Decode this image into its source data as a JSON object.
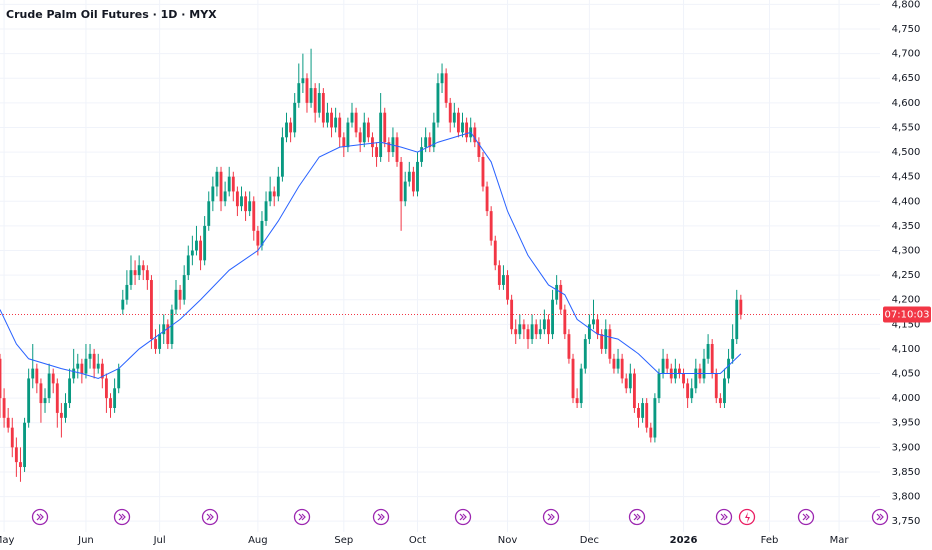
{
  "chart_data": {
    "type": "candlestick",
    "title": "Crude Palm Oil Futures · 1D · MYX",
    "up_color": "#089981",
    "down_color": "#f23645",
    "ylim": [
      3728,
      4809
    ],
    "yticks": [
      {
        "value": 3750,
        "label": "3,750"
      },
      {
        "value": 3800,
        "label": "3,800"
      },
      {
        "value": 3850,
        "label": "3,850"
      },
      {
        "value": 3900,
        "label": "3,900"
      },
      {
        "value": 3950,
        "label": "3,950"
      },
      {
        "value": 4000,
        "label": "4,000"
      },
      {
        "value": 4050,
        "label": "4,050"
      },
      {
        "value": 4100,
        "label": "4,100"
      },
      {
        "value": 4150,
        "label": "4,150"
      },
      {
        "value": 4200,
        "label": "4,200"
      },
      {
        "value": 4250,
        "label": "4,250"
      },
      {
        "value": 4300,
        "label": "4,300"
      },
      {
        "value": 4350,
        "label": "4,350"
      },
      {
        "value": 4400,
        "label": "4,400"
      },
      {
        "value": 4450,
        "label": "4,450"
      },
      {
        "value": 4500,
        "label": "4,500"
      },
      {
        "value": 4550,
        "label": "4,550"
      },
      {
        "value": 4600,
        "label": "4,600"
      },
      {
        "value": 4650,
        "label": "4,650"
      },
      {
        "value": 4700,
        "label": "4,700"
      },
      {
        "value": 4750,
        "label": "4,750"
      },
      {
        "value": 4800,
        "label": "4,800"
      }
    ],
    "xlim": [
      0,
      215
    ],
    "xticks": [
      {
        "value": 1,
        "label": "May"
      },
      {
        "value": 21,
        "label": "Jun"
      },
      {
        "value": 39,
        "label": "Jul"
      },
      {
        "value": 63,
        "label": "Aug"
      },
      {
        "value": 84,
        "label": "Sep"
      },
      {
        "value": 102,
        "label": "Oct"
      },
      {
        "value": 124,
        "label": "Nov"
      },
      {
        "value": 144,
        "label": "Dec"
      },
      {
        "value": 167,
        "label": "2026"
      },
      {
        "value": 188,
        "label": "Feb"
      },
      {
        "value": 205,
        "label": "Mar"
      }
    ],
    "grid": true,
    "ohlc": [
      [
        4080,
        4090,
        3960,
        4000
      ],
      [
        4000,
        4020,
        3940,
        3960
      ],
      [
        3960,
        3980,
        3930,
        3940
      ],
      [
        3940,
        3960,
        3880,
        3900
      ],
      [
        3900,
        3920,
        3840,
        3870
      ],
      [
        3870,
        3900,
        3830,
        3860
      ],
      [
        3860,
        3960,
        3850,
        3950
      ],
      [
        3950,
        4060,
        3940,
        4040
      ],
      [
        4040,
        4110,
        4020,
        4060
      ],
      [
        4060,
        4070,
        4010,
        4030
      ],
      [
        4030,
        4040,
        3950,
        3990
      ],
      [
        3990,
        4020,
        3970,
        4000
      ],
      [
        4000,
        4070,
        3990,
        4050
      ],
      [
        4050,
        4060,
        4010,
        4030
      ],
      [
        4030,
        4040,
        3940,
        3970
      ],
      [
        3970,
        3990,
        3920,
        3960
      ],
      [
        3960,
        4010,
        3950,
        3990
      ],
      [
        3990,
        4060,
        3980,
        4040
      ],
      [
        4040,
        4100,
        4030,
        4060
      ],
      [
        4060,
        4090,
        4040,
        4070
      ],
      [
        4070,
        4080,
        4030,
        4050
      ],
      [
        4050,
        4110,
        4040,
        4080
      ],
      [
        4080,
        4110,
        4060,
        4090
      ],
      [
        4090,
        4100,
        4040,
        4060
      ],
      [
        4060,
        4090,
        4050,
        4070
      ],
      [
        4070,
        4080,
        4020,
        4040
      ],
      [
        4040,
        4050,
        3970,
        4000
      ],
      [
        4000,
        4010,
        3960,
        3980
      ],
      [
        3980,
        4040,
        3970,
        4020
      ],
      [
        4020,
        4070,
        4010,
        4060
      ],
      [
        4180,
        4220,
        4170,
        4200
      ],
      [
        4200,
        4260,
        4190,
        4230
      ],
      [
        4230,
        4290,
        4220,
        4260
      ],
      [
        4260,
        4280,
        4230,
        4250
      ],
      [
        4250,
        4290,
        4240,
        4270
      ],
      [
        4270,
        4280,
        4240,
        4260
      ],
      [
        4260,
        4270,
        4220,
        4240
      ],
      [
        4240,
        4250,
        4100,
        4120
      ],
      [
        4120,
        4140,
        4090,
        4100
      ],
      [
        4100,
        4150,
        4090,
        4130
      ],
      [
        4130,
        4170,
        4110,
        4150
      ],
      [
        4150,
        4160,
        4100,
        4110
      ],
      [
        4110,
        4190,
        4100,
        4180
      ],
      [
        4180,
        4240,
        4170,
        4220
      ],
      [
        4220,
        4230,
        4180,
        4200
      ],
      [
        4200,
        4270,
        4190,
        4250
      ],
      [
        4250,
        4310,
        4240,
        4290
      ],
      [
        4290,
        4330,
        4270,
        4300
      ],
      [
        4300,
        4350,
        4290,
        4320
      ],
      [
        4320,
        4330,
        4260,
        4280
      ],
      [
        4280,
        4370,
        4270,
        4350
      ],
      [
        4350,
        4420,
        4340,
        4400
      ],
      [
        4400,
        4450,
        4380,
        4430
      ],
      [
        4430,
        4470,
        4410,
        4460
      ],
      [
        4460,
        4470,
        4380,
        4400
      ],
      [
        4400,
        4440,
        4390,
        4420
      ],
      [
        4420,
        4470,
        4410,
        4450
      ],
      [
        4450,
        4460,
        4400,
        4420
      ],
      [
        4420,
        4430,
        4370,
        4390
      ],
      [
        4390,
        4430,
        4380,
        4410
      ],
      [
        4410,
        4420,
        4360,
        4380
      ],
      [
        4380,
        4420,
        4370,
        4400
      ],
      [
        4400,
        4410,
        4320,
        4340
      ],
      [
        4340,
        4350,
        4290,
        4310
      ],
      [
        4310,
        4380,
        4300,
        4360
      ],
      [
        4360,
        4420,
        4350,
        4400
      ],
      [
        4400,
        4450,
        4390,
        4420
      ],
      [
        4420,
        4430,
        4390,
        4410
      ],
      [
        4410,
        4470,
        4400,
        4450
      ],
      [
        4450,
        4550,
        4440,
        4530
      ],
      [
        4530,
        4580,
        4520,
        4560
      ],
      [
        4560,
        4570,
        4520,
        4540
      ],
      [
        4540,
        4620,
        4530,
        4600
      ],
      [
        4600,
        4680,
        4590,
        4640
      ],
      [
        4640,
        4700,
        4620,
        4650
      ],
      [
        4650,
        4660,
        4580,
        4600
      ],
      [
        4600,
        4710,
        4590,
        4630
      ],
      [
        4630,
        4640,
        4560,
        4580
      ],
      [
        4580,
        4640,
        4570,
        4620
      ],
      [
        4620,
        4630,
        4550,
        4560
      ],
      [
        4560,
        4600,
        4550,
        4580
      ],
      [
        4580,
        4590,
        4530,
        4550
      ],
      [
        4550,
        4590,
        4540,
        4570
      ],
      [
        4570,
        4580,
        4510,
        4530
      ],
      [
        4530,
        4540,
        4490,
        4510
      ],
      [
        4510,
        4570,
        4500,
        4560
      ],
      [
        4560,
        4600,
        4550,
        4580
      ],
      [
        4580,
        4590,
        4530,
        4540
      ],
      [
        4540,
        4550,
        4500,
        4520
      ],
      [
        4520,
        4580,
        4510,
        4560
      ],
      [
        4560,
        4570,
        4520,
        4530
      ],
      [
        4530,
        4540,
        4490,
        4510
      ],
      [
        4510,
        4520,
        4470,
        4490
      ],
      [
        4490,
        4620,
        4480,
        4580
      ],
      [
        4580,
        4590,
        4510,
        4520
      ],
      [
        4520,
        4530,
        4480,
        4500
      ],
      [
        4500,
        4550,
        4490,
        4530
      ],
      [
        4530,
        4540,
        4470,
        4480
      ],
      [
        4480,
        4490,
        4340,
        4400
      ],
      [
        4400,
        4460,
        4390,
        4440
      ],
      [
        4440,
        4480,
        4430,
        4460
      ],
      [
        4460,
        4470,
        4410,
        4420
      ],
      [
        4420,
        4500,
        4410,
        4480
      ],
      [
        4480,
        4530,
        4470,
        4510
      ],
      [
        4510,
        4550,
        4500,
        4530
      ],
      [
        4530,
        4540,
        4500,
        4510
      ],
      [
        4510,
        4580,
        4500,
        4560
      ],
      [
        4560,
        4660,
        4550,
        4640
      ],
      [
        4640,
        4680,
        4620,
        4660
      ],
      [
        4660,
        4670,
        4590,
        4600
      ],
      [
        4600,
        4610,
        4540,
        4560
      ],
      [
        4560,
        4600,
        4550,
        4580
      ],
      [
        4580,
        4590,
        4530,
        4540
      ],
      [
        4540,
        4580,
        4530,
        4560
      ],
      [
        4560,
        4570,
        4520,
        4530
      ],
      [
        4530,
        4570,
        4520,
        4550
      ],
      [
        4550,
        4560,
        4510,
        4520
      ],
      [
        4520,
        4530,
        4480,
        4490
      ],
      [
        4490,
        4500,
        4420,
        4430
      ],
      [
        4430,
        4440,
        4370,
        4380
      ],
      [
        4380,
        4390,
        4310,
        4320
      ],
      [
        4320,
        4330,
        4260,
        4270
      ],
      [
        4270,
        4280,
        4220,
        4230
      ],
      [
        4230,
        4270,
        4220,
        4250
      ],
      [
        4250,
        4260,
        4190,
        4200
      ],
      [
        4200,
        4210,
        4130,
        4140
      ],
      [
        4140,
        4160,
        4110,
        4130
      ],
      [
        4130,
        4170,
        4120,
        4150
      ],
      [
        4150,
        4160,
        4120,
        4140
      ],
      [
        4140,
        4150,
        4100,
        4120
      ],
      [
        4120,
        4170,
        4110,
        4150
      ],
      [
        4150,
        4160,
        4120,
        4130
      ],
      [
        4130,
        4160,
        4120,
        4140
      ],
      [
        4140,
        4180,
        4130,
        4160
      ],
      [
        4160,
        4170,
        4110,
        4130
      ],
      [
        4130,
        4220,
        4120,
        4200
      ],
      [
        4200,
        4250,
        4190,
        4230
      ],
      [
        4230,
        4240,
        4170,
        4180
      ],
      [
        4180,
        4190,
        4120,
        4130
      ],
      [
        4130,
        4140,
        4070,
        4080
      ],
      [
        4080,
        4090,
        3990,
        4000
      ],
      [
        4000,
        4020,
        3980,
        3990
      ],
      [
        3990,
        4070,
        3980,
        4060
      ],
      [
        4060,
        4130,
        4050,
        4120
      ],
      [
        4120,
        4170,
        4110,
        4150
      ],
      [
        4150,
        4200,
        4140,
        4160
      ],
      [
        4160,
        4170,
        4120,
        4130
      ],
      [
        4130,
        4140,
        4090,
        4100
      ],
      [
        4100,
        4160,
        4090,
        4140
      ],
      [
        4140,
        4150,
        4070,
        4080
      ],
      [
        4080,
        4090,
        4050,
        4060
      ],
      [
        4060,
        4100,
        4050,
        4080
      ],
      [
        4080,
        4090,
        4030,
        4040
      ],
      [
        4040,
        4050,
        4010,
        4020
      ],
      [
        4020,
        4070,
        4010,
        4050
      ],
      [
        4050,
        4060,
        3970,
        3980
      ],
      [
        3980,
        3990,
        3940,
        3960
      ],
      [
        3960,
        4000,
        3950,
        3990
      ],
      [
        3990,
        4000,
        3930,
        3940
      ],
      [
        3940,
        3950,
        3910,
        3920
      ],
      [
        3920,
        4010,
        3910,
        4000
      ],
      [
        4000,
        4060,
        3990,
        4050
      ],
      [
        4050,
        4100,
        4040,
        4080
      ],
      [
        4080,
        4090,
        4050,
        4060
      ],
      [
        4060,
        4070,
        4030,
        4040
      ],
      [
        4040,
        4080,
        4030,
        4060
      ],
      [
        4060,
        4070,
        4040,
        4050
      ],
      [
        4050,
        4060,
        4020,
        4030
      ],
      [
        4030,
        4040,
        3980,
        4000
      ],
      [
        4000,
        4040,
        3990,
        4020
      ],
      [
        4020,
        4080,
        4010,
        4060
      ],
      [
        4060,
        4070,
        4030,
        4040
      ],
      [
        4040,
        4100,
        4030,
        4080
      ],
      [
        4080,
        4130,
        4070,
        4110
      ],
      [
        4110,
        4120,
        4040,
        4050
      ],
      [
        4050,
        4060,
        3990,
        4000
      ],
      [
        4000,
        4010,
        3980,
        3990
      ],
      [
        3990,
        4060,
        3980,
        4040
      ],
      [
        4040,
        4100,
        4030,
        4080
      ],
      [
        4080,
        4150,
        4070,
        4120
      ],
      [
        4120,
        4220,
        4110,
        4200
      ],
      [
        4200,
        4210,
        4160,
        4170
      ]
    ],
    "ma": {
      "color": "#2962ff",
      "x": [
        0,
        4,
        7,
        15,
        20,
        24,
        29,
        34,
        39,
        44,
        49,
        56,
        63,
        68,
        73,
        78,
        83,
        93,
        98,
        102,
        107,
        115,
        120,
        124,
        129,
        134,
        138,
        141,
        146,
        151,
        156,
        161,
        168,
        176,
        181
      ],
      "values": [
        4180,
        4110,
        4080,
        4060,
        4050,
        4040,
        4060,
        4100,
        4130,
        4160,
        4200,
        4260,
        4300,
        4360,
        4430,
        4490,
        4510,
        4520,
        4510,
        4500,
        4520,
        4540,
        4480,
        4380,
        4290,
        4230,
        4210,
        4160,
        4130,
        4120,
        4090,
        4050,
        4050,
        4050,
        4090
      ]
    },
    "price_line": 4170,
    "countdown": "07:10:03"
  }
}
